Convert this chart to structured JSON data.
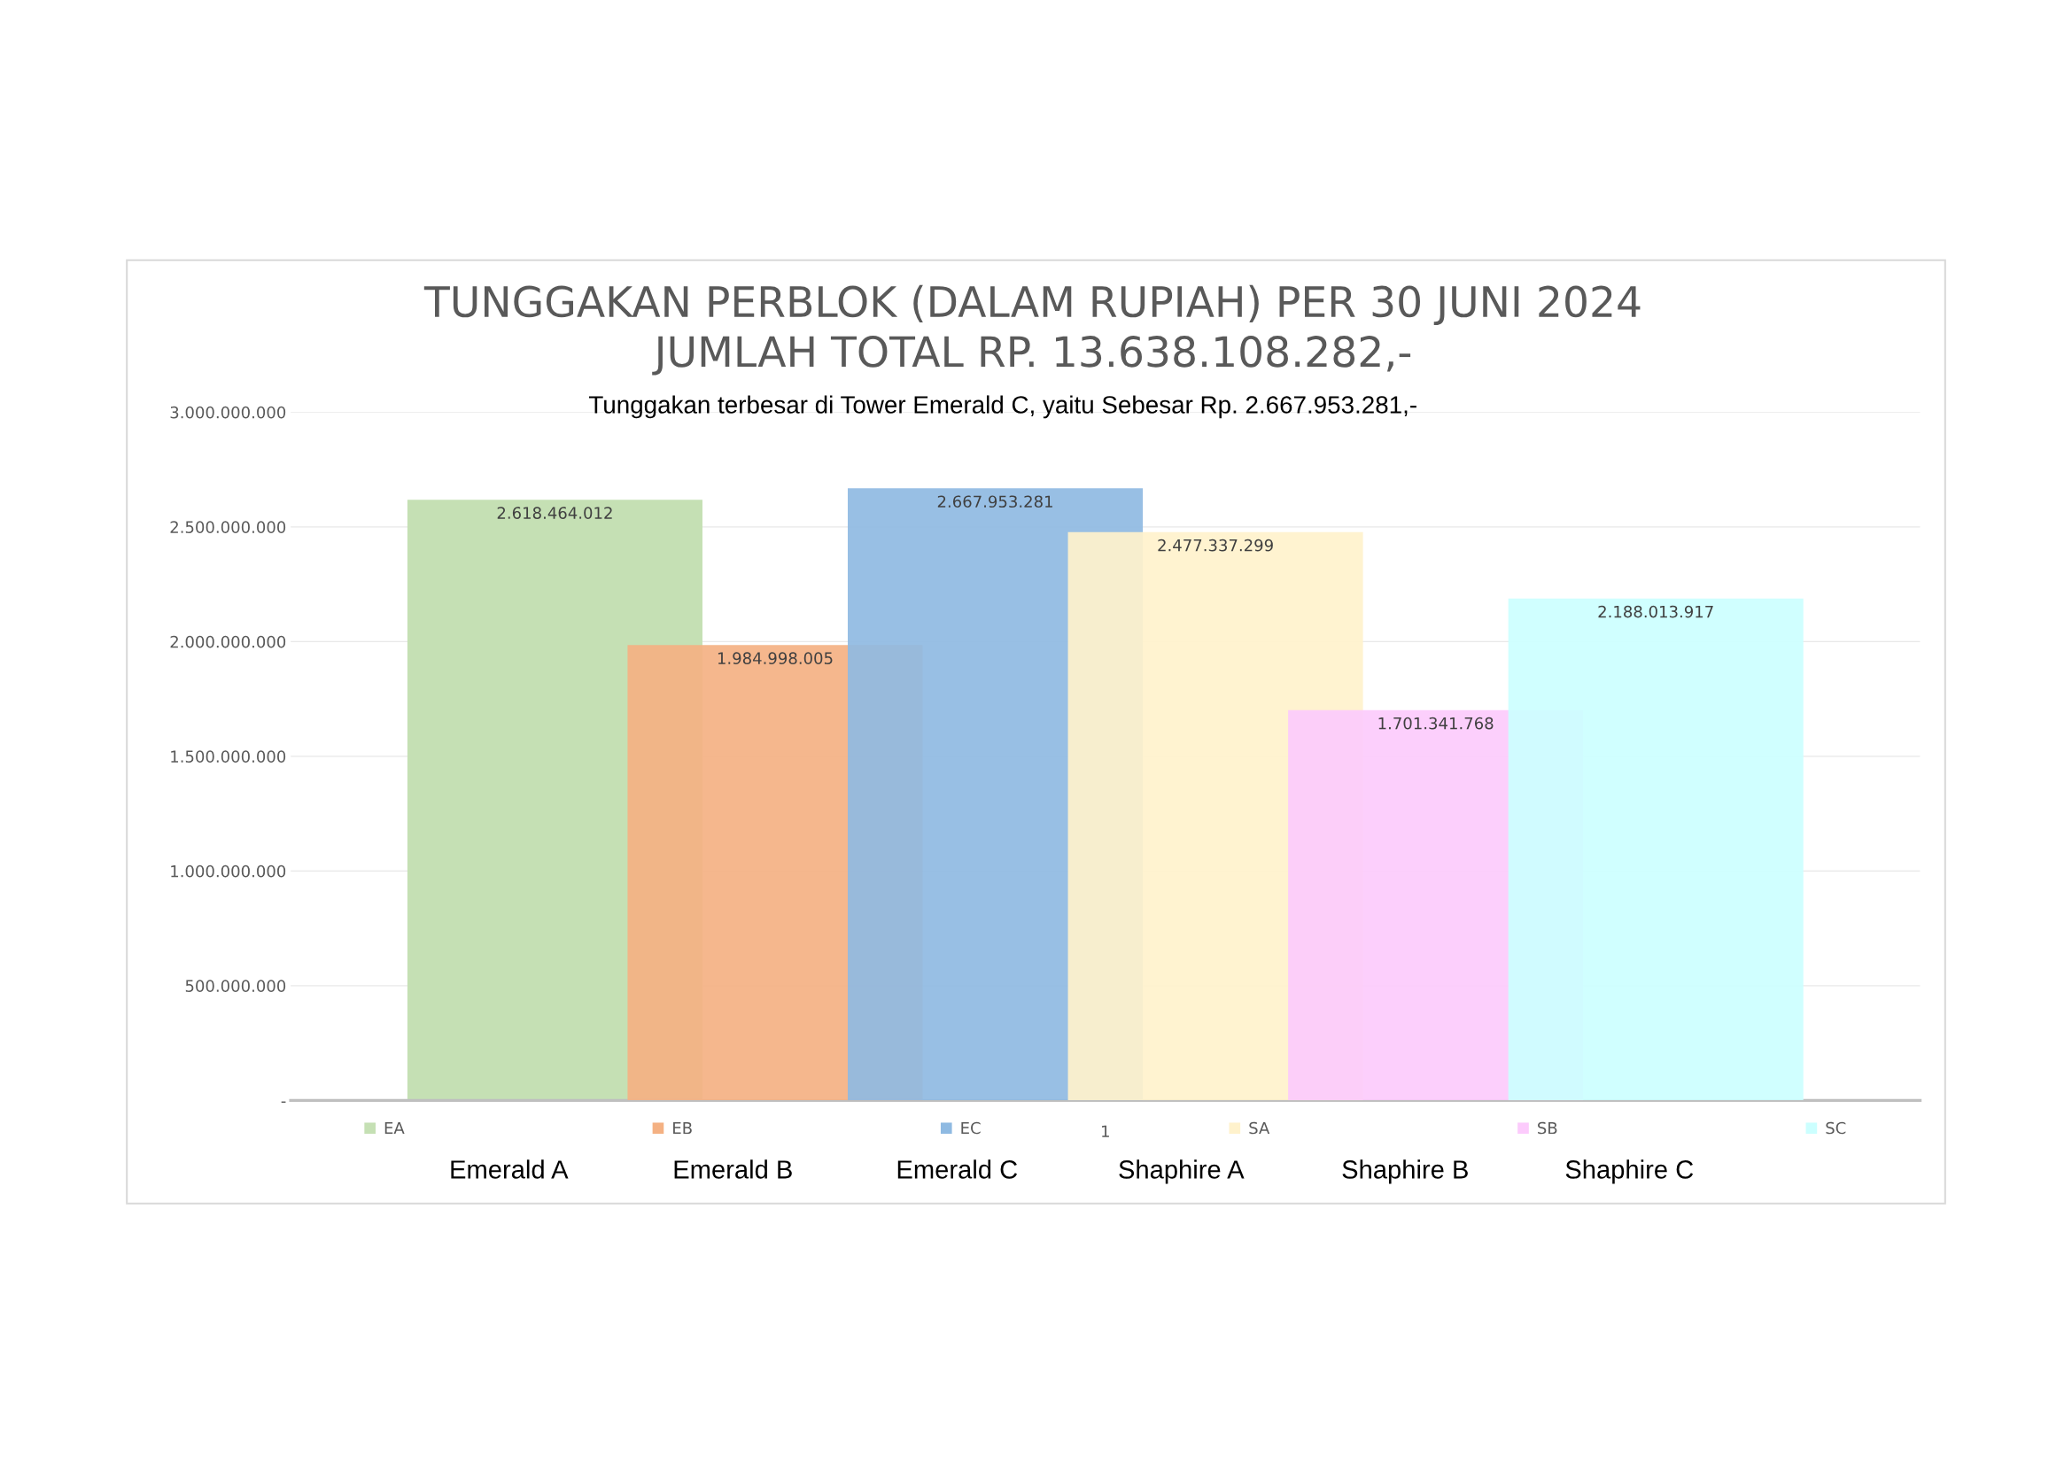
{
  "chart_data": {
    "type": "bar",
    "title": "TUNGGAKAN PERBLOK (DALAM RUPIAH) PER 30 JUNI 2024\nJUMLAH TOTAL RP. 13.638.108.282,-",
    "categories": [
      "1"
    ],
    "series": [
      {
        "name": "EA",
        "color": "#c5e0b4",
        "values": [
          2618464012
        ],
        "value_labels": [
          "2.618.464.012"
        ]
      },
      {
        "name": "EB",
        "color": "#f4b183",
        "values": [
          1984998005
        ],
        "value_labels": [
          "1.984.998.005"
        ]
      },
      {
        "name": "EC",
        "color": "#8fbae2",
        "values": [
          2667953281
        ],
        "value_labels": [
          "2.667.953.281"
        ]
      },
      {
        "name": "SA",
        "color": "#fff2cc",
        "values": [
          2477337299
        ],
        "value_labels": [
          "2.477.337.299"
        ]
      },
      {
        "name": "SB",
        "color": "#fccbfc",
        "values": [
          1701341768
        ],
        "value_labels": [
          "1.701.341.768"
        ]
      },
      {
        "name": "SC",
        "color": "#ccffff",
        "values": [
          2188013917
        ],
        "value_labels": [
          "2.188.013.917"
        ]
      }
    ],
    "ylim": [
      0,
      3000000000
    ],
    "yticks": [
      {
        "value": 0,
        "label": "-"
      },
      {
        "value": 500000000,
        "label": "500.000.000"
      },
      {
        "value": 1000000000,
        "label": "1.000.000.000"
      },
      {
        "value": 1500000000,
        "label": "1.500.000.000"
      },
      {
        "value": 2000000000,
        "label": "2.000.000.000"
      },
      {
        "value": 2500000000,
        "label": "2.500.000.000"
      },
      {
        "value": 3000000000,
        "label": "3.000.000.000"
      }
    ],
    "grid": "y",
    "legend": "bottom",
    "annotations": [
      "Tunggakan terbesar di Tower Emerald C, yaitu Sebesar Rp. 2.667.953.281,-",
      "Emerald A",
      "Emerald B",
      "Emerald C",
      "Shaphire A",
      "Shaphire B",
      "Shaphire C"
    ]
  }
}
